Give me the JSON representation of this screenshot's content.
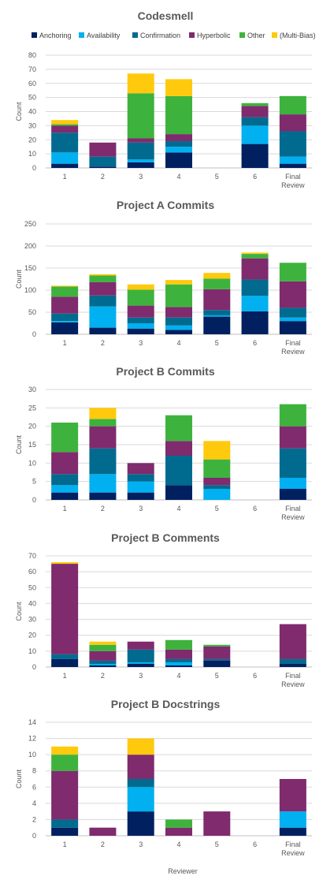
{
  "legend": {
    "placement": "top",
    "items": [
      {
        "name": "Anchoring",
        "color": "#002060"
      },
      {
        "name": "Availability",
        "color": "#00B0F0"
      },
      {
        "name": "Confirmation",
        "color": "#006B8F"
      },
      {
        "name": "Hyperbolic",
        "color": "#7F2B6E"
      },
      {
        "name": "Other",
        "color": "#3DB33D"
      },
      {
        "name": "(Multi-Bias)",
        "color": "#FFC90E"
      }
    ]
  },
  "shared_xlabel": "Reviewer",
  "chart_data": [
    {
      "type": "bar",
      "stacked": true,
      "title": "Codesmell",
      "categories": [
        "1",
        "2",
        "3",
        "4",
        "5",
        "6",
        "Final Review"
      ],
      "ylabel": "Count",
      "ylim": [
        0,
        80
      ],
      "yticks": [
        0,
        10,
        20,
        30,
        40,
        50,
        60,
        70,
        80
      ],
      "grid": true,
      "series": [
        {
          "name": "Anchoring",
          "values": [
            3,
            1,
            4,
            11,
            0,
            17,
            3
          ]
        },
        {
          "name": "Availability",
          "values": [
            8,
            0,
            2,
            4,
            0,
            13,
            5
          ]
        },
        {
          "name": "Confirmation",
          "values": [
            14,
            7,
            12,
            4,
            0,
            6,
            18
          ]
        },
        {
          "name": "Hyperbolic",
          "values": [
            5,
            10,
            3,
            5,
            0,
            8,
            12
          ]
        },
        {
          "name": "Other",
          "values": [
            1,
            0,
            32,
            27,
            0,
            2,
            13
          ]
        },
        {
          "name": "(Multi-Bias)",
          "values": [
            3,
            0,
            14,
            12,
            0,
            0,
            0
          ]
        }
      ]
    },
    {
      "type": "bar",
      "stacked": true,
      "title": "Project A Commits",
      "categories": [
        "1",
        "2",
        "3",
        "4",
        "5",
        "6",
        "Final Review"
      ],
      "ylabel": "Count",
      "ylim": [
        0,
        250
      ],
      "yticks": [
        0,
        50,
        100,
        150,
        200,
        250
      ],
      "grid": true,
      "series": [
        {
          "name": "Anchoring",
          "values": [
            27,
            15,
            13,
            10,
            40,
            52,
            30
          ]
        },
        {
          "name": "Availability",
          "values": [
            3,
            48,
            12,
            10,
            3,
            35,
            8
          ]
        },
        {
          "name": "Confirmation",
          "values": [
            17,
            25,
            13,
            18,
            12,
            37,
            22
          ]
        },
        {
          "name": "Hyperbolic",
          "values": [
            38,
            30,
            27,
            24,
            47,
            48,
            60
          ]
        },
        {
          "name": "Other",
          "values": [
            23,
            15,
            36,
            51,
            24,
            10,
            42
          ]
        },
        {
          "name": "(Multi-Bias)",
          "values": [
            2,
            3,
            12,
            10,
            13,
            3,
            0
          ]
        }
      ]
    },
    {
      "type": "bar",
      "stacked": true,
      "title": "Project B Commits",
      "categories": [
        "1",
        "2",
        "3",
        "4",
        "5",
        "6",
        "Final Review"
      ],
      "ylabel": "Count",
      "ylim": [
        0,
        30
      ],
      "yticks": [
        0,
        5,
        10,
        15,
        20,
        25,
        30
      ],
      "grid": true,
      "series": [
        {
          "name": "Anchoring",
          "values": [
            2,
            2,
            2,
            4,
            0,
            0,
            3
          ]
        },
        {
          "name": "Availability",
          "values": [
            2,
            5,
            3,
            0,
            3,
            0,
            3
          ]
        },
        {
          "name": "Confirmation",
          "values": [
            3,
            7,
            2,
            8,
            1,
            0,
            8
          ]
        },
        {
          "name": "Hyperbolic",
          "values": [
            6,
            6,
            3,
            4,
            2,
            0,
            6
          ]
        },
        {
          "name": "Other",
          "values": [
            8,
            2,
            0,
            7,
            5,
            0,
            6
          ]
        },
        {
          "name": "(Multi-Bias)",
          "values": [
            0,
            3,
            0,
            0,
            5,
            0,
            0
          ]
        }
      ]
    },
    {
      "type": "bar",
      "stacked": true,
      "title": "Project B Comments",
      "categories": [
        "1",
        "2",
        "3",
        "4",
        "5",
        "6",
        "Final Review"
      ],
      "ylabel": "Count",
      "ylim": [
        0,
        70
      ],
      "yticks": [
        0,
        10,
        20,
        30,
        40,
        50,
        60,
        70
      ],
      "grid": true,
      "series": [
        {
          "name": "Anchoring",
          "values": [
            5,
            1,
            2,
            1,
            4,
            0,
            2
          ]
        },
        {
          "name": "Availability",
          "values": [
            0,
            1,
            1,
            2,
            0,
            0,
            0
          ]
        },
        {
          "name": "Confirmation",
          "values": [
            3,
            2,
            8,
            2,
            1,
            0,
            3
          ]
        },
        {
          "name": "Hyperbolic",
          "values": [
            57,
            6,
            5,
            6,
            8,
            0,
            22
          ]
        },
        {
          "name": "Other",
          "values": [
            0,
            4,
            0,
            6,
            1,
            0,
            0
          ]
        },
        {
          "name": "(Multi-Bias)",
          "values": [
            1,
            2,
            0,
            0,
            0,
            0,
            0
          ]
        }
      ]
    },
    {
      "type": "bar",
      "stacked": true,
      "title": "Project B Docstrings",
      "categories": [
        "1",
        "2",
        "3",
        "4",
        "5",
        "6",
        "Final Review"
      ],
      "ylabel": "Count",
      "ylim": [
        0,
        14
      ],
      "yticks": [
        0,
        2,
        4,
        6,
        8,
        10,
        12,
        14
      ],
      "grid": true,
      "series": [
        {
          "name": "Anchoring",
          "values": [
            1,
            0,
            3,
            0,
            0,
            0,
            1
          ]
        },
        {
          "name": "Availability",
          "values": [
            0,
            0,
            3,
            0,
            0,
            0,
            2
          ]
        },
        {
          "name": "Confirmation",
          "values": [
            1,
            0,
            1,
            0,
            0,
            0,
            0
          ]
        },
        {
          "name": "Hyperbolic",
          "values": [
            6,
            1,
            3,
            1,
            3,
            0,
            4
          ]
        },
        {
          "name": "Other",
          "values": [
            2,
            0,
            0,
            1,
            0,
            0,
            0
          ]
        },
        {
          "name": "(Multi-Bias)",
          "values": [
            1,
            0,
            2,
            0,
            0,
            0,
            0
          ]
        }
      ]
    }
  ]
}
